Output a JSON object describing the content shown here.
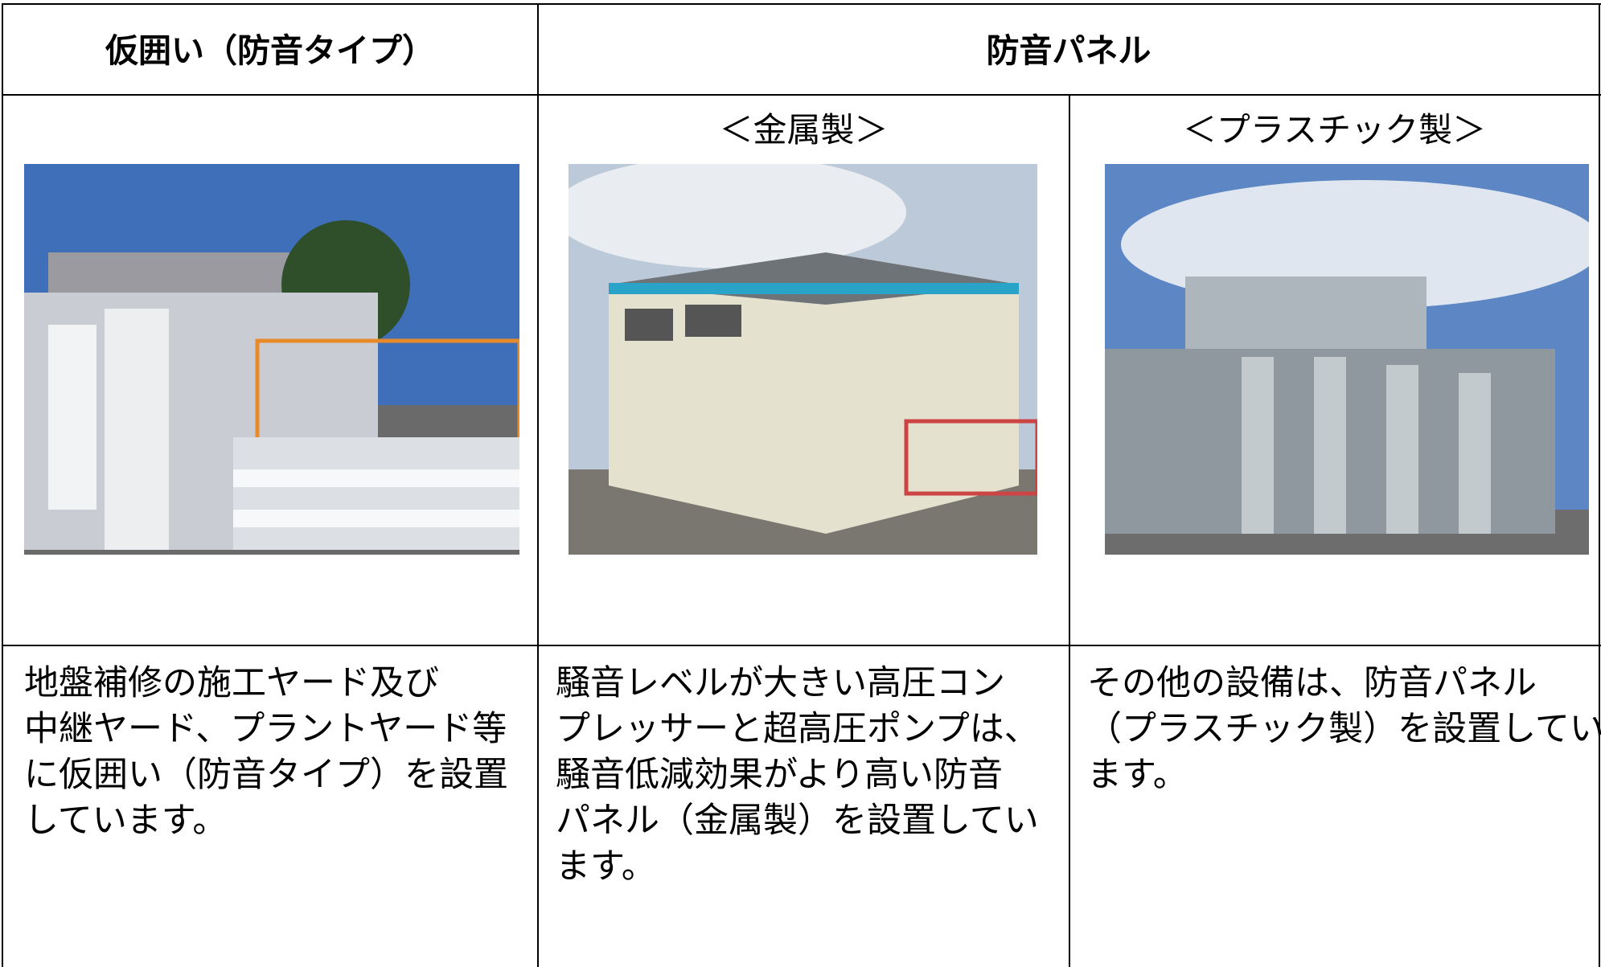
{
  "table": {
    "headers": [
      "仮囲い（防音タイプ）",
      "防音パネル"
    ],
    "subheaders": [
      "＜金属製＞",
      "＜プラスチック製＞"
    ],
    "descriptions": [
      {
        "lines": [
          "地盤補修の施工ヤード及び",
          "中継ヤード、プラントヤード等",
          "に仮囲い（防音タイプ）を設置",
          "しています。"
        ]
      },
      {
        "lines": [
          "騒音レベルが大きい高圧コン",
          "プレッサーと超高圧ポンプは、",
          "騒音低減効果がより高い防音",
          "パネル（金属製）を設置してい",
          "ます。"
        ]
      },
      {
        "lines": [
          "その他の設備は、防音パネル",
          "（プラスチック製）を設置してい",
          "ます。"
        ]
      }
    ]
  }
}
